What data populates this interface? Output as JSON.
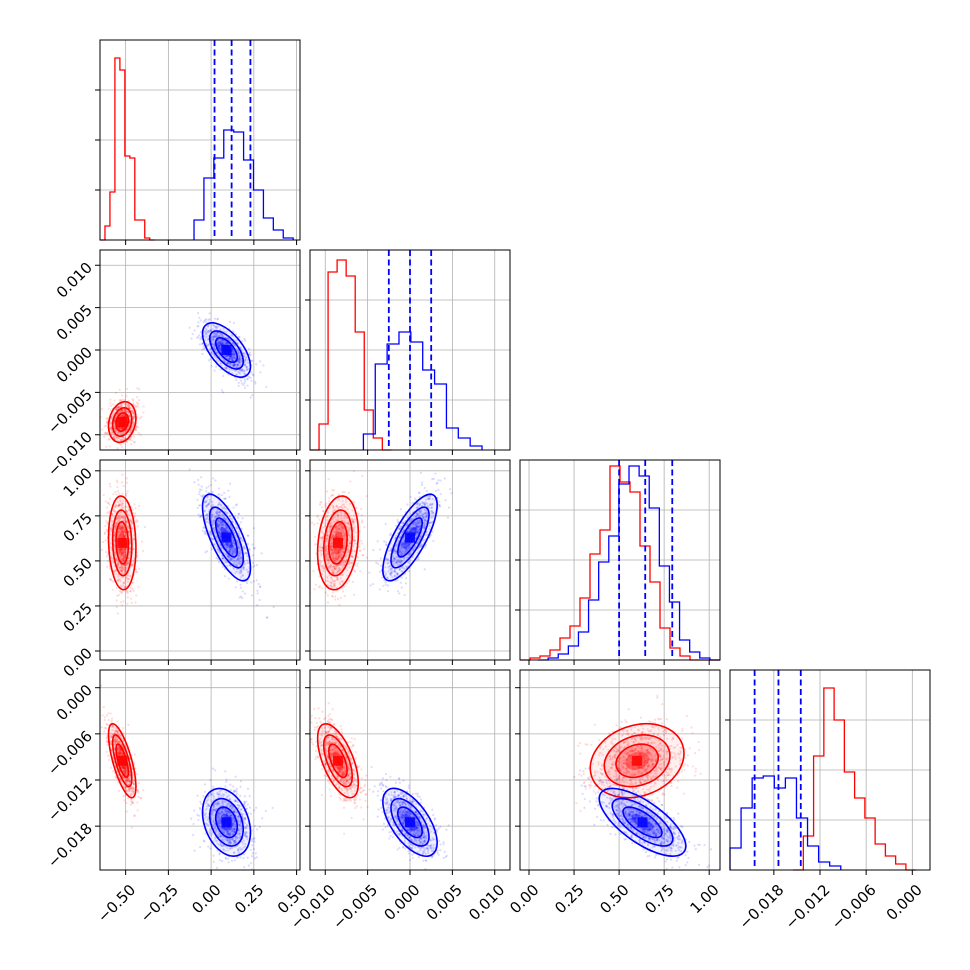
{
  "chart_data": {
    "type": "corner",
    "parameters": [
      {
        "range": [
          -0.65,
          0.52
        ],
        "ticks": [
          -0.5,
          -0.25,
          0.0,
          0.25,
          0.5
        ],
        "tick_labels": [
          "−0.50",
          "−0.25",
          "0.00",
          "0.25",
          "0.50"
        ],
        "quantiles": [
          0.02,
          0.12,
          0.23
        ]
      },
      {
        "range": [
          -0.0118,
          0.0118
        ],
        "ticks": [
          -0.01,
          -0.005,
          0.0,
          0.005,
          0.01
        ],
        "tick_labels": [
          "−0.010",
          "−0.005",
          "0.000",
          "0.005",
          "0.010"
        ],
        "quantiles": [
          -0.0025,
          0.0,
          0.0025
        ]
      },
      {
        "range": [
          -0.05,
          1.06
        ],
        "ticks": [
          0.0,
          0.25,
          0.5,
          0.75,
          1.0
        ],
        "tick_labels": [
          "0.00",
          "0.25",
          "0.50",
          "0.75",
          "1.00"
        ],
        "quantiles": [
          0.5,
          0.645,
          0.795
        ]
      },
      {
        "range": [
          -0.0237,
          0.0023
        ],
        "ticks": [
          0.0,
          -0.006,
          -0.012,
          -0.018
        ],
        "tick_labels": [
          "0.000",
          "−0.006",
          "−0.012",
          "−0.018"
        ],
        "quantiles": [
          -0.0205,
          -0.0174,
          -0.0145
        ]
      }
    ],
    "series": [
      {
        "color": "#ff0000",
        "mean": [
          -0.52,
          -0.0085,
          0.6,
          -0.0095
        ],
        "sd": [
          0.04,
          0.0012,
          0.13,
          0.0024
        ],
        "hists": [
          {
            "edges": [
              -0.65,
              -0.33
            ],
            "counts": [
              0,
              0.07,
              0.24,
              0.91,
              0.85,
              0.42,
              0.41,
              0.1,
              0.1,
              0.01,
              0
            ]
          },
          {
            "edges": [
              -0.0118,
              -0.0022
            ],
            "counts": [
              0,
              0.13,
              0.89,
              0.95,
              0.87,
              0.59,
              0.2,
              0.06,
              0
            ]
          },
          {
            "edges": [
              -0.05,
              1.06
            ],
            "counts": [
              0,
              0.01,
              0.02,
              0.05,
              0.11,
              0.17,
              0.31,
              0.53,
              0.65,
              0.97,
              0.89,
              0.84,
              0.57,
              0.39,
              0.16,
              0.06,
              0.02,
              0,
              0,
              0
            ]
          },
          {
            "edges": [
              -0.0155,
              0.0005
            ],
            "counts": [
              0,
              0.17,
              0.57,
              0.91,
              0.75,
              0.49,
              0.36,
              0.26,
              0.13,
              0.07,
              0.03,
              0
            ]
          }
        ]
      },
      {
        "color": "#0000ff",
        "mean": [
          0.09,
          0.0,
          0.63,
          -0.0175
        ],
        "sd": [
          0.07,
          0.0016,
          0.12,
          0.0022
        ],
        "hists": [
          {
            "edges": [
              -0.1,
              0.48
            ],
            "counts": [
              0.1,
              0.31,
              0.41,
              0.55,
              0.54,
              0.4,
              0.25,
              0.11,
              0.05,
              0.01
            ]
          },
          {
            "edges": [
              -0.0055,
              0.0085
            ],
            "counts": [
              0.08,
              0.43,
              0.53,
              0.59,
              0.54,
              0.4,
              0.33,
              0.11,
              0.06,
              0.02
            ]
          },
          {
            "edges": [
              0.05,
              1.06
            ],
            "counts": [
              0,
              0.01,
              0.03,
              0.07,
              0.14,
              0.3,
              0.49,
              0.62,
              0.88,
              0.97,
              0.92,
              0.76,
              0.47,
              0.29,
              0.1,
              0.04,
              0.01,
              0
            ]
          },
          {
            "edges": [
              -0.0237,
              -0.0093
            ],
            "counts": [
              0.11,
              0.31,
              0.46,
              0.47,
              0.41,
              0.46,
              0.26,
              0.12,
              0.04,
              0.02
            ]
          }
        ]
      }
    ]
  }
}
